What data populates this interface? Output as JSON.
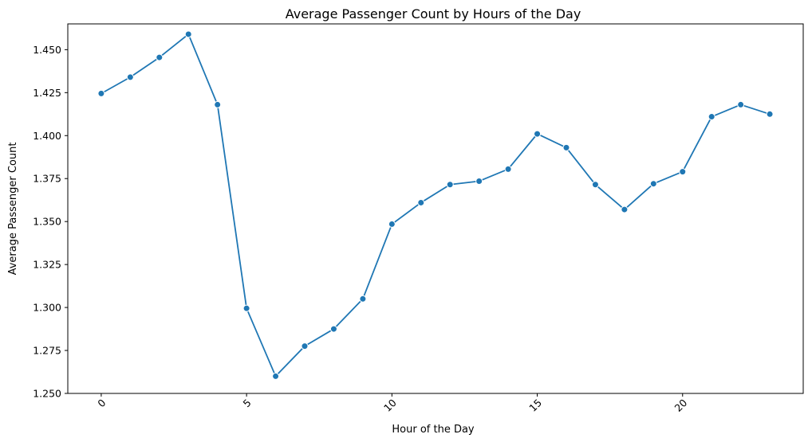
{
  "chart_data": {
    "type": "line",
    "title": "Average Passenger Count by Hours of the Day",
    "xlabel": "Hour of the Day",
    "ylabel": "Average Passenger Count",
    "xlim": [
      -1.15,
      24.15
    ],
    "ylim": [
      1.25,
      1.465
    ],
    "xticks": [
      0,
      5,
      10,
      15,
      20
    ],
    "xtick_labels": [
      "0",
      "5",
      "10",
      "15",
      "20"
    ],
    "xtick_rotation_deg": 45,
    "yticks": [
      1.25,
      1.275,
      1.3,
      1.325,
      1.35,
      1.375,
      1.4,
      1.425,
      1.45
    ],
    "ytick_labels": [
      "1.250",
      "1.275",
      "1.300",
      "1.325",
      "1.350",
      "1.375",
      "1.400",
      "1.425",
      "1.450"
    ],
    "grid": false,
    "marker": "circle",
    "line_color": "#1f77b4",
    "x": [
      0,
      1,
      2,
      3,
      4,
      5,
      6,
      7,
      8,
      9,
      10,
      11,
      12,
      13,
      14,
      15,
      16,
      17,
      18,
      19,
      20,
      21,
      22,
      23
    ],
    "values": [
      1.4245,
      1.434,
      1.4455,
      1.459,
      1.418,
      1.2995,
      1.26,
      1.2775,
      1.2875,
      1.305,
      1.3485,
      1.361,
      1.3715,
      1.3735,
      1.3805,
      1.401,
      1.393,
      1.3715,
      1.357,
      1.372,
      1.379,
      1.411,
      1.418,
      1.4125
    ]
  }
}
